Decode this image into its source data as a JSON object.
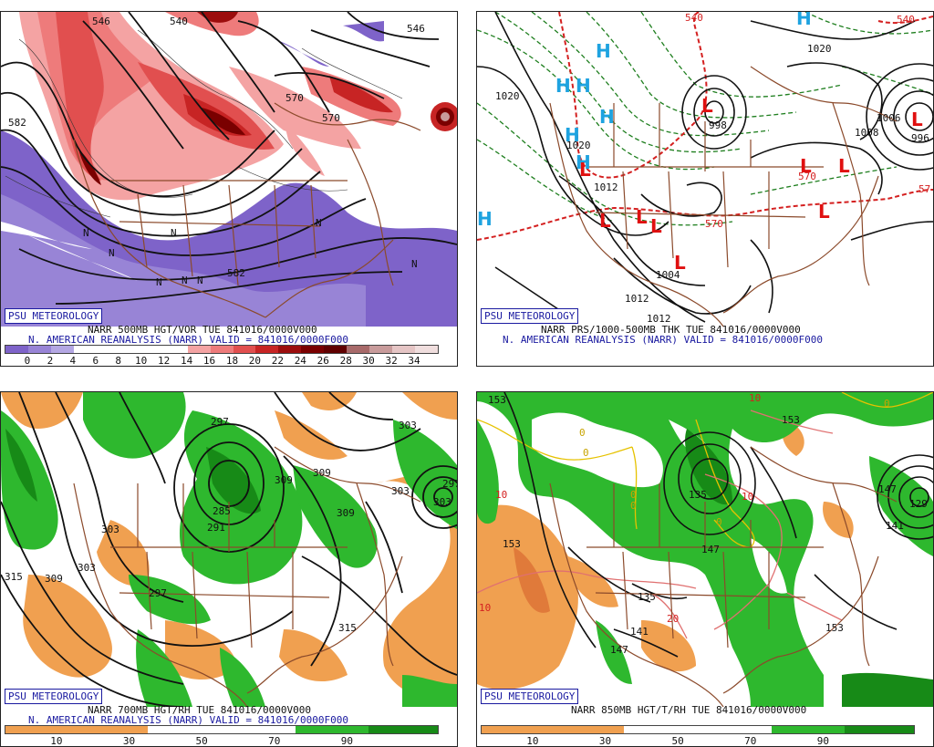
{
  "badge": "PSU METEOROLOGY",
  "panels": {
    "tl": {
      "caption1": "NARR 500MB HGT/VOR TUE 841016/0000V000",
      "caption2": "N. AMERICAN REANALYSIS (NARR) VALID = 841016/0000F000",
      "legend_ticks": [
        "0",
        "2",
        "4",
        "6",
        "8",
        "10",
        "12",
        "14",
        "16",
        "18",
        "20",
        "22",
        "24",
        "26",
        "28",
        "30",
        "32",
        "34"
      ],
      "legend_colors": [
        "#7e63c9",
        "#9884d6",
        "#b4a7e3",
        "#ffffff",
        "#ffffff",
        "#ffffff",
        "#ffffff",
        "#ffffff",
        "#f4a3a3",
        "#ee7b7b",
        "#e14f4f",
        "#c72424",
        "#9c0d0d",
        "#7a0000",
        "#600000",
        "#a86a6a",
        "#c89b9b",
        "#e5c5c5",
        "#f0dede"
      ],
      "contour_labels": [
        "546",
        "540",
        "582",
        "570",
        "570",
        "546",
        "582",
        "N",
        "N",
        "N",
        "N",
        "N",
        "N",
        "N",
        "N"
      ]
    },
    "tr": {
      "caption1": "NARR PRS/1000-500MB THK TUE 841016/0000V000",
      "caption2": "N. AMERICAN REANALYSIS (NARR) VALID = 841016/0000F000",
      "high_marks": [
        "H",
        "H",
        "H",
        "H",
        "H",
        "H",
        "H",
        "H"
      ],
      "low_marks": [
        "L",
        "L",
        "L",
        "L",
        "L",
        "L",
        "L",
        "L",
        "L",
        "L"
      ],
      "contour_labels": [
        "1020",
        "1020",
        "1020",
        "1012",
        "1004",
        "1012",
        "1012",
        "1008",
        "1006",
        "996",
        "998",
        "540",
        "570",
        "570",
        "540",
        "57"
      ]
    },
    "bl": {
      "caption1": "NARR 700MB HGT/RH TUE 841016/0000V000",
      "caption2": "N. AMERICAN REANALYSIS (NARR) VALID = 841016/0000F000",
      "legend_ticks": [
        "10",
        "30",
        "50",
        "70",
        "90"
      ],
      "contour_labels": [
        "297",
        "303",
        "303",
        "309",
        "315",
        "309",
        "303",
        "309",
        "303",
        "297",
        "291",
        "285",
        "315",
        "309",
        "303",
        "297"
      ]
    },
    "br": {
      "caption1": "NARR 850MB HGT/T/RH TUE 841016/0000V000",
      "legend_ticks": [
        "10",
        "30",
        "50",
        "70",
        "90"
      ],
      "contour_labels": [
        "153",
        "153",
        "153",
        "147",
        "141",
        "135",
        "147",
        "153",
        "147",
        "141",
        "135",
        "129",
        "10",
        "10",
        "10",
        "20",
        "0",
        "0",
        "0",
        "0",
        "0",
        "0",
        "10"
      ]
    }
  },
  "colors": {
    "land": "#8b4a2b",
    "height": "#111111",
    "badge": "#1a1aa0",
    "green": "#2eb82e",
    "dark_green": "#178a17",
    "orange": "#f0a050",
    "purple": "#7e63c9",
    "red": "#d23a3a",
    "dark_red": "#7a0000",
    "thickness": "#d42020",
    "dashed_green": "#1f7f1f",
    "high": "#1ea3e0",
    "low": "#e01010"
  },
  "icons": {
    "high": "letter-H",
    "low": "letter-L"
  }
}
